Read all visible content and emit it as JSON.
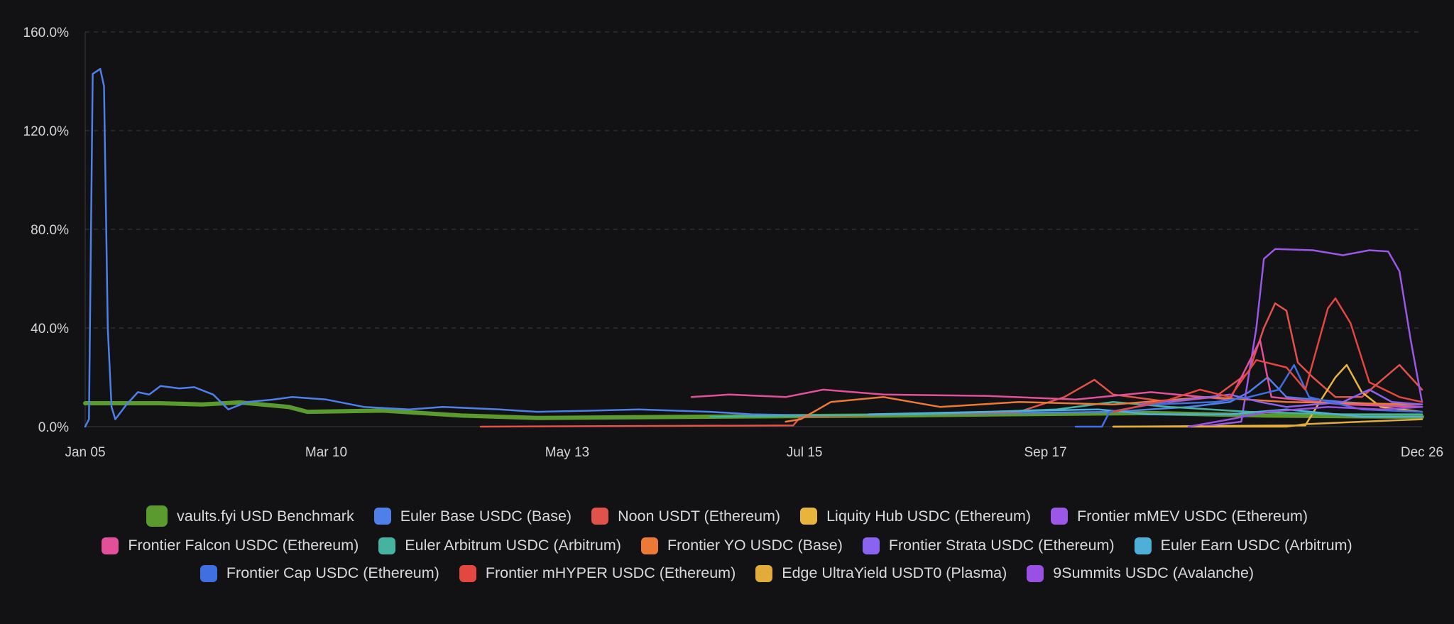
{
  "chart_data": {
    "type": "line",
    "x_type": "date",
    "xlim": [
      "2025-01-05",
      "2025-12-26"
    ],
    "ylim": [
      0,
      160
    ],
    "y_ticks": [
      0,
      40,
      80,
      120,
      160
    ],
    "y_tick_labels": [
      "0.0%",
      "40.0%",
      "80.0%",
      "120.0%",
      "160.0%"
    ],
    "x_ticks": [
      "2025-01-05",
      "2025-03-10",
      "2025-05-13",
      "2025-07-15",
      "2025-09-17",
      "2025-12-26"
    ],
    "x_tick_labels": [
      "Jan 05",
      "Mar 10",
      "May 13",
      "Jul 15",
      "Sep 17",
      "Dec 26"
    ],
    "grid": "horizontal-dashed",
    "legend_position": "bottom",
    "series": [
      {
        "name": "vaults.fyi USD Benchmark",
        "color": "#5b9a2e",
        "width": 6,
        "points": [
          [
            "2025-01-05",
            9.5
          ],
          [
            "2025-01-25",
            9.5
          ],
          [
            "2025-02-05",
            9
          ],
          [
            "2025-02-15",
            9.8
          ],
          [
            "2025-02-28",
            8
          ],
          [
            "2025-03-05",
            6
          ],
          [
            "2025-03-25",
            6.5
          ],
          [
            "2025-04-15",
            4.5
          ],
          [
            "2025-05-05",
            3.5
          ],
          [
            "2025-06-15",
            4
          ],
          [
            "2025-08-05",
            4.5
          ],
          [
            "2025-09-05",
            5
          ],
          [
            "2025-10-15",
            5.5
          ],
          [
            "2025-11-15",
            4.5
          ],
          [
            "2025-12-26",
            4
          ]
        ]
      },
      {
        "name": "Euler Base USDC (Base)",
        "color": "#4f7fe8",
        "width": 2.5,
        "points": [
          [
            "2025-01-05",
            0
          ],
          [
            "2025-01-06",
            3
          ],
          [
            "2025-01-07",
            143
          ],
          [
            "2025-01-09",
            145
          ],
          [
            "2025-01-10",
            138
          ],
          [
            "2025-01-11",
            40
          ],
          [
            "2025-01-12",
            8
          ],
          [
            "2025-01-13",
            3
          ],
          [
            "2025-01-16",
            9
          ],
          [
            "2025-01-19",
            14
          ],
          [
            "2025-01-22",
            13
          ],
          [
            "2025-01-25",
            16.5
          ],
          [
            "2025-01-30",
            15.5
          ],
          [
            "2025-02-03",
            16
          ],
          [
            "2025-02-08",
            13
          ],
          [
            "2025-02-12",
            7
          ],
          [
            "2025-02-17",
            10
          ],
          [
            "2025-02-24",
            11
          ],
          [
            "2025-03-01",
            12
          ],
          [
            "2025-03-10",
            11
          ],
          [
            "2025-03-20",
            8
          ],
          [
            "2025-04-01",
            7
          ],
          [
            "2025-04-10",
            8
          ],
          [
            "2025-04-25",
            7
          ],
          [
            "2025-05-05",
            6
          ],
          [
            "2025-05-20",
            6.5
          ],
          [
            "2025-06-01",
            7
          ],
          [
            "2025-06-20",
            6
          ],
          [
            "2025-07-01",
            5
          ],
          [
            "2025-07-20",
            4.5
          ],
          [
            "2025-08-15",
            5
          ],
          [
            "2025-09-05",
            5.5
          ],
          [
            "2025-10-05",
            6
          ],
          [
            "2025-10-25",
            8
          ],
          [
            "2025-11-05",
            10
          ],
          [
            "2025-11-10",
            14
          ],
          [
            "2025-11-15",
            20
          ],
          [
            "2025-11-20",
            12
          ],
          [
            "2025-12-05",
            10
          ],
          [
            "2025-12-26",
            8
          ]
        ]
      },
      {
        "name": "Noon USDT (Ethereum)",
        "color": "#e0524a",
        "width": 2.5,
        "points": [
          [
            "2025-04-20",
            0
          ],
          [
            "2025-07-12",
            0.5
          ],
          [
            "2025-07-14",
            4
          ],
          [
            "2025-08-15",
            5
          ],
          [
            "2025-09-10",
            6
          ],
          [
            "2025-09-22",
            12
          ],
          [
            "2025-09-30",
            19
          ],
          [
            "2025-10-05",
            13
          ],
          [
            "2025-10-20",
            10
          ],
          [
            "2025-11-01",
            12
          ],
          [
            "2025-11-10",
            22
          ],
          [
            "2025-11-14",
            40
          ],
          [
            "2025-11-17",
            50
          ],
          [
            "2025-11-20",
            47
          ],
          [
            "2025-11-23",
            26
          ],
          [
            "2025-11-27",
            20
          ],
          [
            "2025-12-03",
            12
          ],
          [
            "2025-12-10",
            12
          ],
          [
            "2025-12-20",
            25
          ],
          [
            "2025-12-26",
            15
          ]
        ]
      },
      {
        "name": "Liquity Hub USDC (Ethereum)",
        "color": "#e8b43c",
        "width": 2.5,
        "points": [
          [
            "2025-10-05",
            0
          ],
          [
            "2025-11-25",
            0.5
          ],
          [
            "2025-11-28",
            8
          ],
          [
            "2025-12-03",
            20
          ],
          [
            "2025-12-06",
            25
          ],
          [
            "2025-12-10",
            14
          ],
          [
            "2025-12-15",
            8
          ],
          [
            "2025-12-26",
            6
          ]
        ]
      },
      {
        "name": "Frontier mMEV USDC (Ethereum)",
        "color": "#9b57e6",
        "width": 2.5,
        "points": [
          [
            "2025-10-28",
            0
          ],
          [
            "2025-11-08",
            2
          ],
          [
            "2025-11-12",
            40
          ],
          [
            "2025-11-14",
            68
          ],
          [
            "2025-11-17",
            72
          ],
          [
            "2025-11-27",
            71.5
          ],
          [
            "2025-12-05",
            69.5
          ],
          [
            "2025-12-12",
            71.5
          ],
          [
            "2025-12-17",
            71
          ],
          [
            "2025-12-20",
            63
          ],
          [
            "2025-12-23",
            35
          ],
          [
            "2025-12-26",
            10
          ]
        ]
      },
      {
        "name": "Frontier Falcon USDC (Ethereum)",
        "color": "#e44f9a",
        "width": 2.5,
        "points": [
          [
            "2025-06-15",
            12
          ],
          [
            "2025-06-25",
            13
          ],
          [
            "2025-07-10",
            12
          ],
          [
            "2025-07-20",
            15
          ],
          [
            "2025-08-05",
            13
          ],
          [
            "2025-09-01",
            12.5
          ],
          [
            "2025-09-25",
            11
          ],
          [
            "2025-10-15",
            14
          ],
          [
            "2025-11-05",
            11
          ],
          [
            "2025-11-13",
            35
          ],
          [
            "2025-11-16",
            12
          ],
          [
            "2025-12-05",
            9
          ],
          [
            "2025-12-26",
            8
          ]
        ]
      },
      {
        "name": "Euler Arbitrum USDC (Arbitrum)",
        "color": "#45b3a0",
        "width": 2.5,
        "points": [
          [
            "2025-06-20",
            4
          ],
          [
            "2025-08-15",
            5
          ],
          [
            "2025-09-20",
            7
          ],
          [
            "2025-10-05",
            10
          ],
          [
            "2025-10-20",
            8
          ],
          [
            "2025-11-10",
            6
          ],
          [
            "2025-12-05",
            5
          ],
          [
            "2025-12-26",
            5
          ]
        ]
      },
      {
        "name": "Frontier YO USDC (Base)",
        "color": "#ec7a36",
        "width": 2.5,
        "points": [
          [
            "2025-07-10",
            2
          ],
          [
            "2025-07-14",
            3
          ],
          [
            "2025-07-22",
            10
          ],
          [
            "2025-08-05",
            12
          ],
          [
            "2025-08-20",
            8
          ],
          [
            "2025-09-10",
            10
          ],
          [
            "2025-10-05",
            9
          ],
          [
            "2025-10-30",
            12
          ],
          [
            "2025-11-20",
            10
          ],
          [
            "2025-12-26",
            9
          ]
        ]
      },
      {
        "name": "Frontier Strata USDC (Ethereum)",
        "color": "#8a64f0",
        "width": 2.5,
        "points": [
          [
            "2025-10-12",
            9
          ],
          [
            "2025-10-25",
            11
          ],
          [
            "2025-11-05",
            13
          ],
          [
            "2025-11-13",
            10
          ],
          [
            "2025-11-20",
            8
          ],
          [
            "2025-12-05",
            10
          ],
          [
            "2025-12-12",
            15
          ],
          [
            "2025-12-18",
            10
          ],
          [
            "2025-12-26",
            9
          ]
        ]
      },
      {
        "name": "Euler Earn USDC (Arbitrum)",
        "color": "#4eb0d8",
        "width": 2.5,
        "points": [
          [
            "2025-08-01",
            5
          ],
          [
            "2025-09-01",
            6
          ],
          [
            "2025-10-01",
            7
          ],
          [
            "2025-10-15",
            5
          ],
          [
            "2025-11-05",
            5
          ],
          [
            "2025-11-20",
            7
          ],
          [
            "2025-12-10",
            4
          ],
          [
            "2025-12-26",
            4
          ]
        ]
      },
      {
        "name": "Frontier Cap USDC (Ethereum)",
        "color": "#3f6fe0",
        "width": 2.5,
        "points": [
          [
            "2025-09-25",
            0
          ],
          [
            "2025-10-02",
            0
          ],
          [
            "2025-10-04",
            6
          ],
          [
            "2025-10-15",
            9
          ],
          [
            "2025-11-01",
            10
          ],
          [
            "2025-11-10",
            12
          ],
          [
            "2025-11-18",
            15
          ],
          [
            "2025-11-22",
            25
          ],
          [
            "2025-11-26",
            12
          ],
          [
            "2025-12-10",
            7
          ],
          [
            "2025-12-26",
            6
          ]
        ]
      },
      {
        "name": "Frontier mHYPER USDC (Ethereum)",
        "color": "#e3473f",
        "width": 2.5,
        "points": [
          [
            "2025-10-05",
            6
          ],
          [
            "2025-10-20",
            11
          ],
          [
            "2025-10-28",
            15
          ],
          [
            "2025-11-05",
            12
          ],
          [
            "2025-11-12",
            27
          ],
          [
            "2025-11-20",
            24
          ],
          [
            "2025-11-25",
            15
          ],
          [
            "2025-12-01",
            48
          ],
          [
            "2025-12-03",
            52
          ],
          [
            "2025-12-07",
            42
          ],
          [
            "2025-12-12",
            18
          ],
          [
            "2025-12-20",
            12
          ],
          [
            "2025-12-26",
            10
          ]
        ]
      },
      {
        "name": "Edge UltraYield USDT0 (Plasma)",
        "color": "#e2ac3a",
        "width": 2.5,
        "points": [
          [
            "2025-10-05",
            0
          ],
          [
            "2025-11-20",
            0
          ],
          [
            "2025-11-25",
            1
          ],
          [
            "2025-12-10",
            2
          ],
          [
            "2025-12-26",
            3
          ]
        ]
      },
      {
        "name": "9Summits USDC (Avalanche)",
        "color": "#9a50e3",
        "width": 2.5,
        "points": [
          [
            "2025-10-25",
            0
          ],
          [
            "2025-11-05",
            3
          ],
          [
            "2025-11-15",
            6
          ],
          [
            "2025-12-01",
            8
          ],
          [
            "2025-12-15",
            7
          ],
          [
            "2025-12-26",
            8
          ]
        ]
      }
    ]
  },
  "legend_rows": [
    [
      0,
      1,
      2,
      3,
      4
    ],
    [
      5,
      6,
      7,
      8,
      9
    ],
    [
      10,
      11,
      12,
      13
    ]
  ]
}
